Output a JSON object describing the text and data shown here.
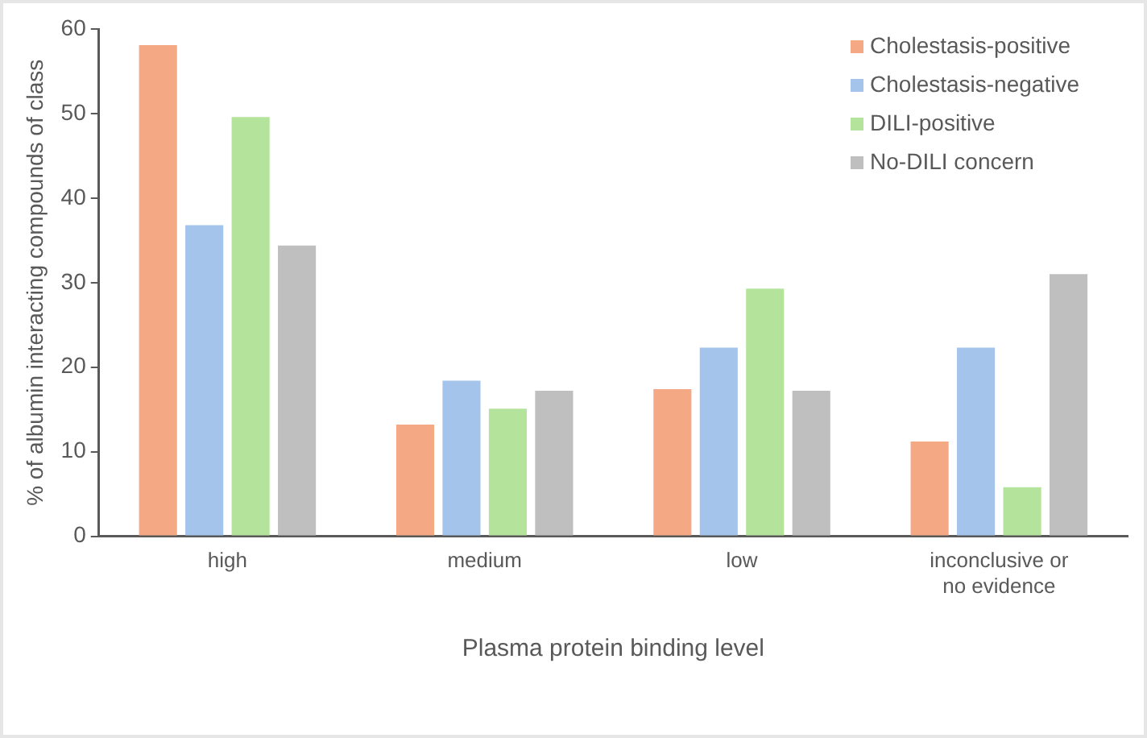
{
  "chart_data": {
    "type": "bar",
    "xlabel": "Plasma protein binding level",
    "ylabel": "% of albumin interacting compounds of class",
    "categories": [
      "high",
      "medium",
      "low",
      "inconclusive or no evidence"
    ],
    "series": [
      {
        "name": "Cholestasis-positive",
        "color": "#f4a984",
        "values": [
          58.1,
          13.2,
          17.4,
          11.2
        ]
      },
      {
        "name": "Cholestasis-negative",
        "color": "#a4c4ec",
        "values": [
          36.8,
          18.4,
          22.3,
          22.3
        ]
      },
      {
        "name": "DILI-positive",
        "color": "#b4e49c",
        "values": [
          49.6,
          15.1,
          29.3,
          5.8
        ]
      },
      {
        "name": "No-DILI concern",
        "color": "#bfbfbf",
        "values": [
          34.4,
          17.2,
          17.2,
          31.0
        ]
      }
    ],
    "ylim": [
      0,
      60
    ],
    "yticks": [
      0,
      10,
      20,
      30,
      40,
      50,
      60
    ],
    "grid": false,
    "legend": "top right"
  }
}
